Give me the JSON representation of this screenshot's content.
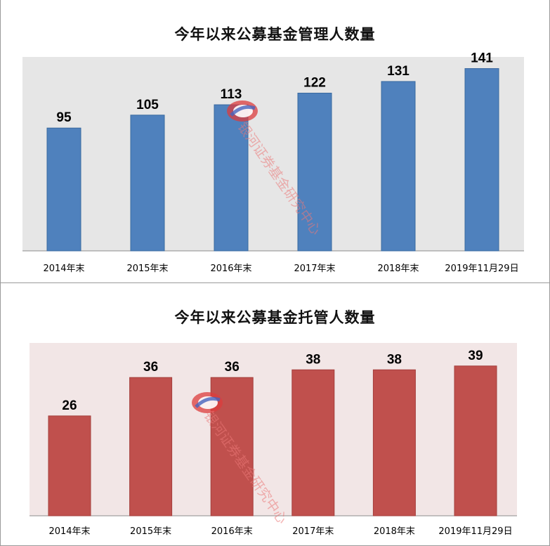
{
  "charts": [
    {
      "title": "今年以来公募基金管理人数量",
      "bar_color": "#4f81bd",
      "bar_stroke": "#3a6aa0",
      "plot_bg": "#e6e6e6"
    },
    {
      "title": "今年以来公募基金托管人数量",
      "bar_color": "#c0504d",
      "bar_stroke": "#a43f3c",
      "plot_bg": "#f2e6e6"
    }
  ],
  "watermark": {
    "text": "银河证券基金研究中心",
    "logo": "galaxy-securities-logo"
  },
  "chart_data": [
    {
      "type": "bar",
      "title": "今年以来公募基金管理人数量",
      "categories": [
        "2014年末",
        "2015年末",
        "2016年末",
        "2017年末",
        "2018年末",
        "2019年11月29日"
      ],
      "values": [
        95,
        105,
        113,
        122,
        131,
        141
      ],
      "xlabel": "",
      "ylabel": "",
      "ylim": [
        0,
        150
      ],
      "grid": false,
      "legend": "none"
    },
    {
      "type": "bar",
      "title": "今年以来公募基金托管人数量",
      "categories": [
        "2014年末",
        "2015年末",
        "2016年末",
        "2017年末",
        "2018年末",
        "2019年11月29日"
      ],
      "values": [
        26,
        36,
        36,
        38,
        38,
        39
      ],
      "xlabel": "",
      "ylabel": "",
      "ylim": [
        0,
        45
      ],
      "grid": false,
      "legend": "none"
    }
  ]
}
